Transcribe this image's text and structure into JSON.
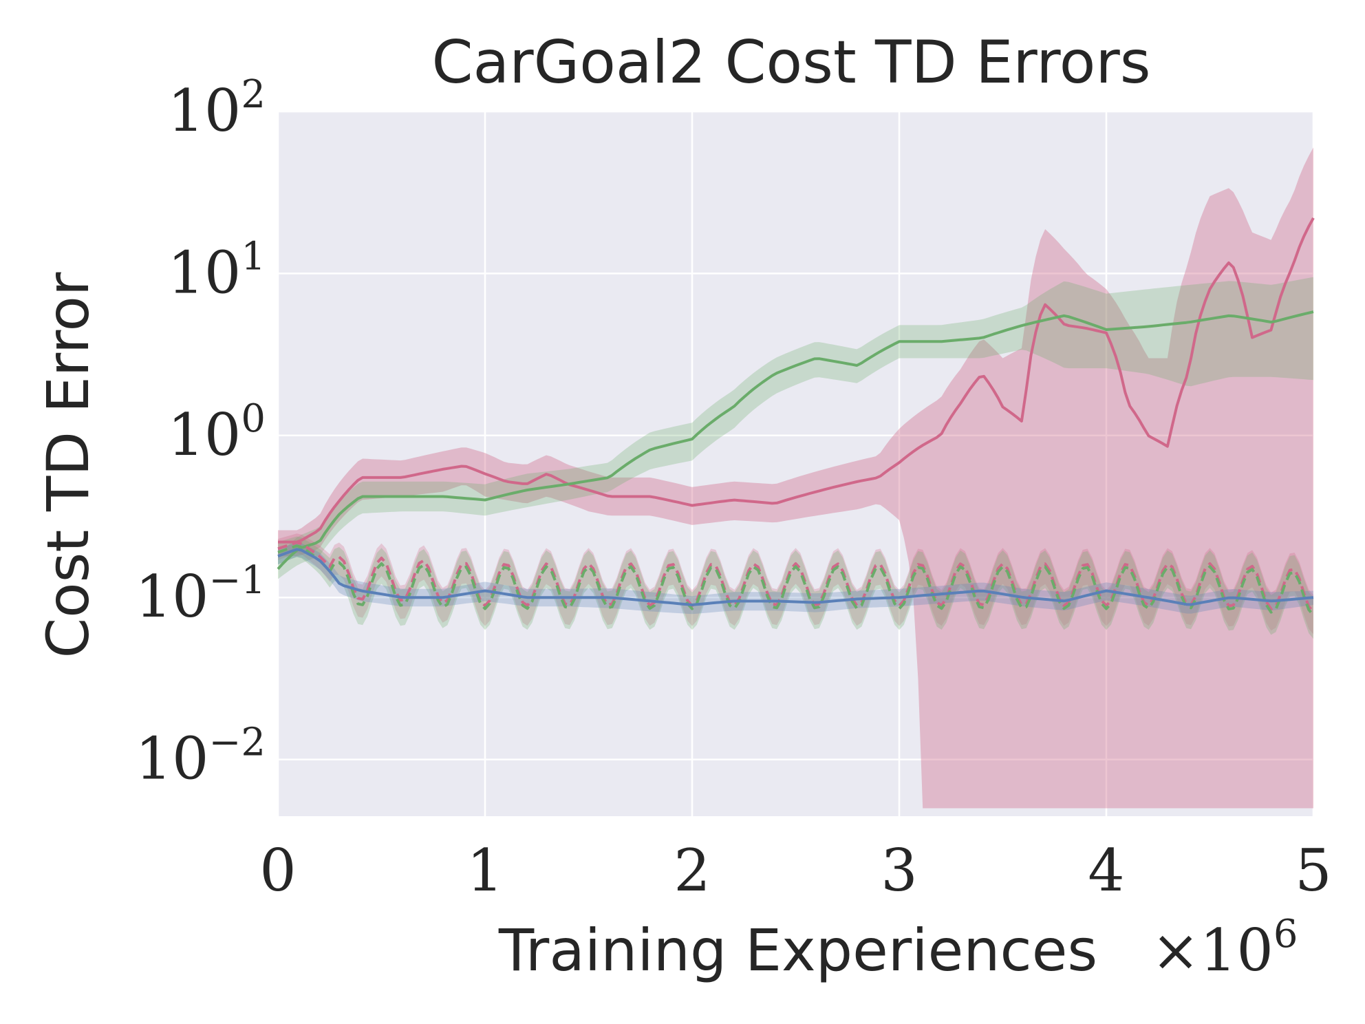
{
  "chart_data": {
    "type": "line",
    "title": "CarGoal2 Cost TD Errors",
    "xlabel": "Training Experiences",
    "ylabel": "Cost TD Error",
    "x_multiplier": "×10",
    "x_multiplier_exp": "6",
    "xlim": [
      0,
      5
    ],
    "ylim_log10": [
      -2.35,
      2
    ],
    "yscale": "log",
    "xticks": [
      {
        "value": 0,
        "label": "0"
      },
      {
        "value": 1,
        "label": "1"
      },
      {
        "value": 2,
        "label": "2"
      },
      {
        "value": 3,
        "label": "3"
      },
      {
        "value": 4,
        "label": "4"
      },
      {
        "value": 5,
        "label": "5"
      }
    ],
    "yticks": [
      {
        "value": 100,
        "base": "10",
        "exp": "2"
      },
      {
        "value": 10,
        "base": "10",
        "exp": "1"
      },
      {
        "value": 1,
        "base": "10",
        "exp": "0"
      },
      {
        "value": 0.1,
        "base": "10",
        "exp": "−1"
      },
      {
        "value": 0.01,
        "base": "10",
        "exp": "−2"
      }
    ],
    "grid": true,
    "legend": "none",
    "series": [
      {
        "name": "red-main",
        "color": "#d0688a",
        "style": "solid",
        "x": [
          0,
          0.1,
          0.2,
          0.3,
          0.4,
          0.6,
          0.8,
          0.9,
          1.0,
          1.1,
          1.2,
          1.3,
          1.4,
          1.5,
          1.6,
          1.8,
          2.0,
          2.2,
          2.4,
          2.6,
          2.8,
          2.9,
          3.0,
          3.1,
          3.2,
          3.3,
          3.4,
          3.5,
          3.6,
          3.7,
          3.8,
          3.9,
          4.0,
          4.1,
          4.2,
          4.3,
          4.4,
          4.5,
          4.6,
          4.7,
          4.8,
          4.9,
          5.0
        ],
        "y": [
          0.22,
          0.22,
          0.26,
          0.4,
          0.55,
          0.55,
          0.62,
          0.65,
          0.58,
          0.52,
          0.5,
          0.58,
          0.5,
          0.46,
          0.42,
          0.42,
          0.37,
          0.4,
          0.38,
          0.45,
          0.52,
          0.55,
          0.68,
          0.85,
          1.0,
          1.6,
          2.4,
          1.5,
          1.2,
          6.5,
          4.8,
          4.6,
          4.3,
          1.6,
          1.0,
          0.85,
          2.5,
          8.0,
          12.0,
          4.0,
          4.5,
          11.0,
          22.0
        ],
        "band_low": [
          0.18,
          0.18,
          0.2,
          0.3,
          0.4,
          0.42,
          0.45,
          0.5,
          0.42,
          0.4,
          0.38,
          0.42,
          0.38,
          0.34,
          0.32,
          0.32,
          0.28,
          0.3,
          0.29,
          0.32,
          0.35,
          0.38,
          0.3,
          0.005,
          0.005,
          0.005,
          0.005,
          0.005,
          0.005,
          0.005,
          0.005,
          0.005,
          0.005,
          0.005,
          0.005,
          0.005,
          0.005,
          0.005,
          0.005,
          0.005,
          0.005,
          0.005,
          0.005
        ],
        "band_high": [
          0.26,
          0.26,
          0.32,
          0.52,
          0.72,
          0.7,
          0.8,
          0.85,
          0.78,
          0.68,
          0.66,
          0.76,
          0.66,
          0.6,
          0.55,
          0.55,
          0.48,
          0.52,
          0.5,
          0.6,
          0.7,
          0.75,
          1.1,
          1.4,
          1.7,
          2.6,
          4.0,
          3.0,
          3.5,
          19.0,
          14.0,
          10.0,
          8.0,
          5.0,
          3.0,
          3.0,
          12.0,
          30.0,
          34.0,
          18.0,
          16.0,
          30.0,
          60.0
        ]
      },
      {
        "name": "green-main",
        "color": "#6aac6a",
        "style": "solid",
        "x": [
          0,
          0.1,
          0.2,
          0.3,
          0.4,
          0.6,
          0.8,
          1.0,
          1.2,
          1.4,
          1.6,
          1.8,
          2.0,
          2.2,
          2.4,
          2.6,
          2.8,
          3.0,
          3.2,
          3.4,
          3.6,
          3.8,
          4.0,
          4.2,
          4.4,
          4.6,
          4.8,
          5.0
        ],
        "y": [
          0.15,
          0.2,
          0.22,
          0.33,
          0.42,
          0.42,
          0.42,
          0.4,
          0.46,
          0.5,
          0.55,
          0.82,
          0.95,
          1.5,
          2.4,
          3.0,
          2.7,
          3.8,
          3.8,
          4.0,
          4.8,
          5.5,
          4.5,
          4.7,
          5.0,
          5.5,
          5.0,
          5.8
        ],
        "band_low": [
          0.13,
          0.16,
          0.18,
          0.26,
          0.33,
          0.34,
          0.34,
          0.32,
          0.36,
          0.4,
          0.45,
          0.62,
          0.7,
          1.1,
          1.8,
          2.3,
          2.1,
          3.0,
          3.0,
          3.0,
          3.4,
          2.6,
          2.6,
          2.4,
          2.0,
          2.3,
          2.3,
          2.2
        ],
        "band_high": [
          0.18,
          0.24,
          0.27,
          0.4,
          0.52,
          0.52,
          0.52,
          0.5,
          0.58,
          0.62,
          0.68,
          1.05,
          1.2,
          1.9,
          3.0,
          3.8,
          3.4,
          4.8,
          4.8,
          5.2,
          6.2,
          9.0,
          7.5,
          8.0,
          8.5,
          9.0,
          8.5,
          9.5
        ]
      },
      {
        "name": "red-dashed",
        "color": "#d0688a",
        "style": "dashed",
        "x": [
          0,
          0.1,
          0.2,
          0.3,
          0.5,
          1.0,
          1.5,
          2.0,
          2.5,
          3.0,
          3.5,
          4.0,
          4.5,
          5.0
        ],
        "y": [
          0.2,
          0.22,
          0.18,
          0.13,
          0.13,
          0.12,
          0.12,
          0.12,
          0.12,
          0.12,
          0.12,
          0.12,
          0.12,
          0.11
        ],
        "oscillation": {
          "amplitude_log10": 0.13,
          "period": 0.2
        },
        "band_low": [
          0.17,
          0.19,
          0.15,
          0.1,
          0.1,
          0.09,
          0.09,
          0.09,
          0.09,
          0.09,
          0.09,
          0.09,
          0.09,
          0.08
        ],
        "band_high": [
          0.23,
          0.25,
          0.21,
          0.16,
          0.16,
          0.15,
          0.15,
          0.15,
          0.15,
          0.15,
          0.15,
          0.15,
          0.15,
          0.14
        ]
      },
      {
        "name": "green-dashed",
        "color": "#6aac6a",
        "style": "dashed",
        "x": [
          0,
          0.1,
          0.2,
          0.3,
          0.5,
          1.0,
          1.5,
          2.0,
          2.5,
          3.0,
          3.5,
          4.0,
          4.5,
          5.0
        ],
        "y": [
          0.19,
          0.21,
          0.17,
          0.12,
          0.12,
          0.115,
          0.115,
          0.115,
          0.115,
          0.115,
          0.115,
          0.115,
          0.115,
          0.105
        ],
        "oscillation": {
          "amplitude_log10": 0.13,
          "period": 0.2
        },
        "band_low": [
          0.16,
          0.18,
          0.14,
          0.09,
          0.09,
          0.085,
          0.085,
          0.085,
          0.085,
          0.085,
          0.085,
          0.085,
          0.085,
          0.075
        ],
        "band_high": [
          0.22,
          0.24,
          0.2,
          0.15,
          0.15,
          0.145,
          0.145,
          0.145,
          0.145,
          0.145,
          0.145,
          0.145,
          0.145,
          0.135
        ]
      },
      {
        "name": "blue-main",
        "color": "#5a80b8",
        "style": "solid",
        "x": [
          0,
          0.1,
          0.2,
          0.3,
          0.4,
          0.6,
          0.8,
          1.0,
          1.2,
          1.4,
          1.6,
          1.8,
          2.0,
          2.2,
          2.4,
          2.6,
          2.8,
          3.0,
          3.2,
          3.4,
          3.6,
          3.8,
          4.0,
          4.2,
          4.4,
          4.6,
          4.8,
          5.0
        ],
        "y": [
          0.18,
          0.2,
          0.17,
          0.12,
          0.11,
          0.1,
          0.1,
          0.11,
          0.1,
          0.1,
          0.1,
          0.095,
          0.09,
          0.095,
          0.095,
          0.093,
          0.098,
          0.1,
          0.105,
          0.11,
          0.1,
          0.095,
          0.11,
          0.1,
          0.09,
          0.1,
          0.095,
          0.1
        ],
        "band_low": [
          0.16,
          0.18,
          0.15,
          0.105,
          0.095,
          0.088,
          0.088,
          0.095,
          0.088,
          0.088,
          0.086,
          0.082,
          0.079,
          0.083,
          0.083,
          0.081,
          0.086,
          0.088,
          0.092,
          0.096,
          0.088,
          0.083,
          0.096,
          0.088,
          0.079,
          0.088,
          0.083,
          0.09
        ],
        "band_high": [
          0.2,
          0.22,
          0.19,
          0.135,
          0.125,
          0.113,
          0.113,
          0.125,
          0.113,
          0.113,
          0.114,
          0.108,
          0.102,
          0.108,
          0.108,
          0.106,
          0.11,
          0.113,
          0.118,
          0.124,
          0.113,
          0.108,
          0.124,
          0.113,
          0.102,
          0.113,
          0.108,
          0.11
        ]
      }
    ]
  }
}
